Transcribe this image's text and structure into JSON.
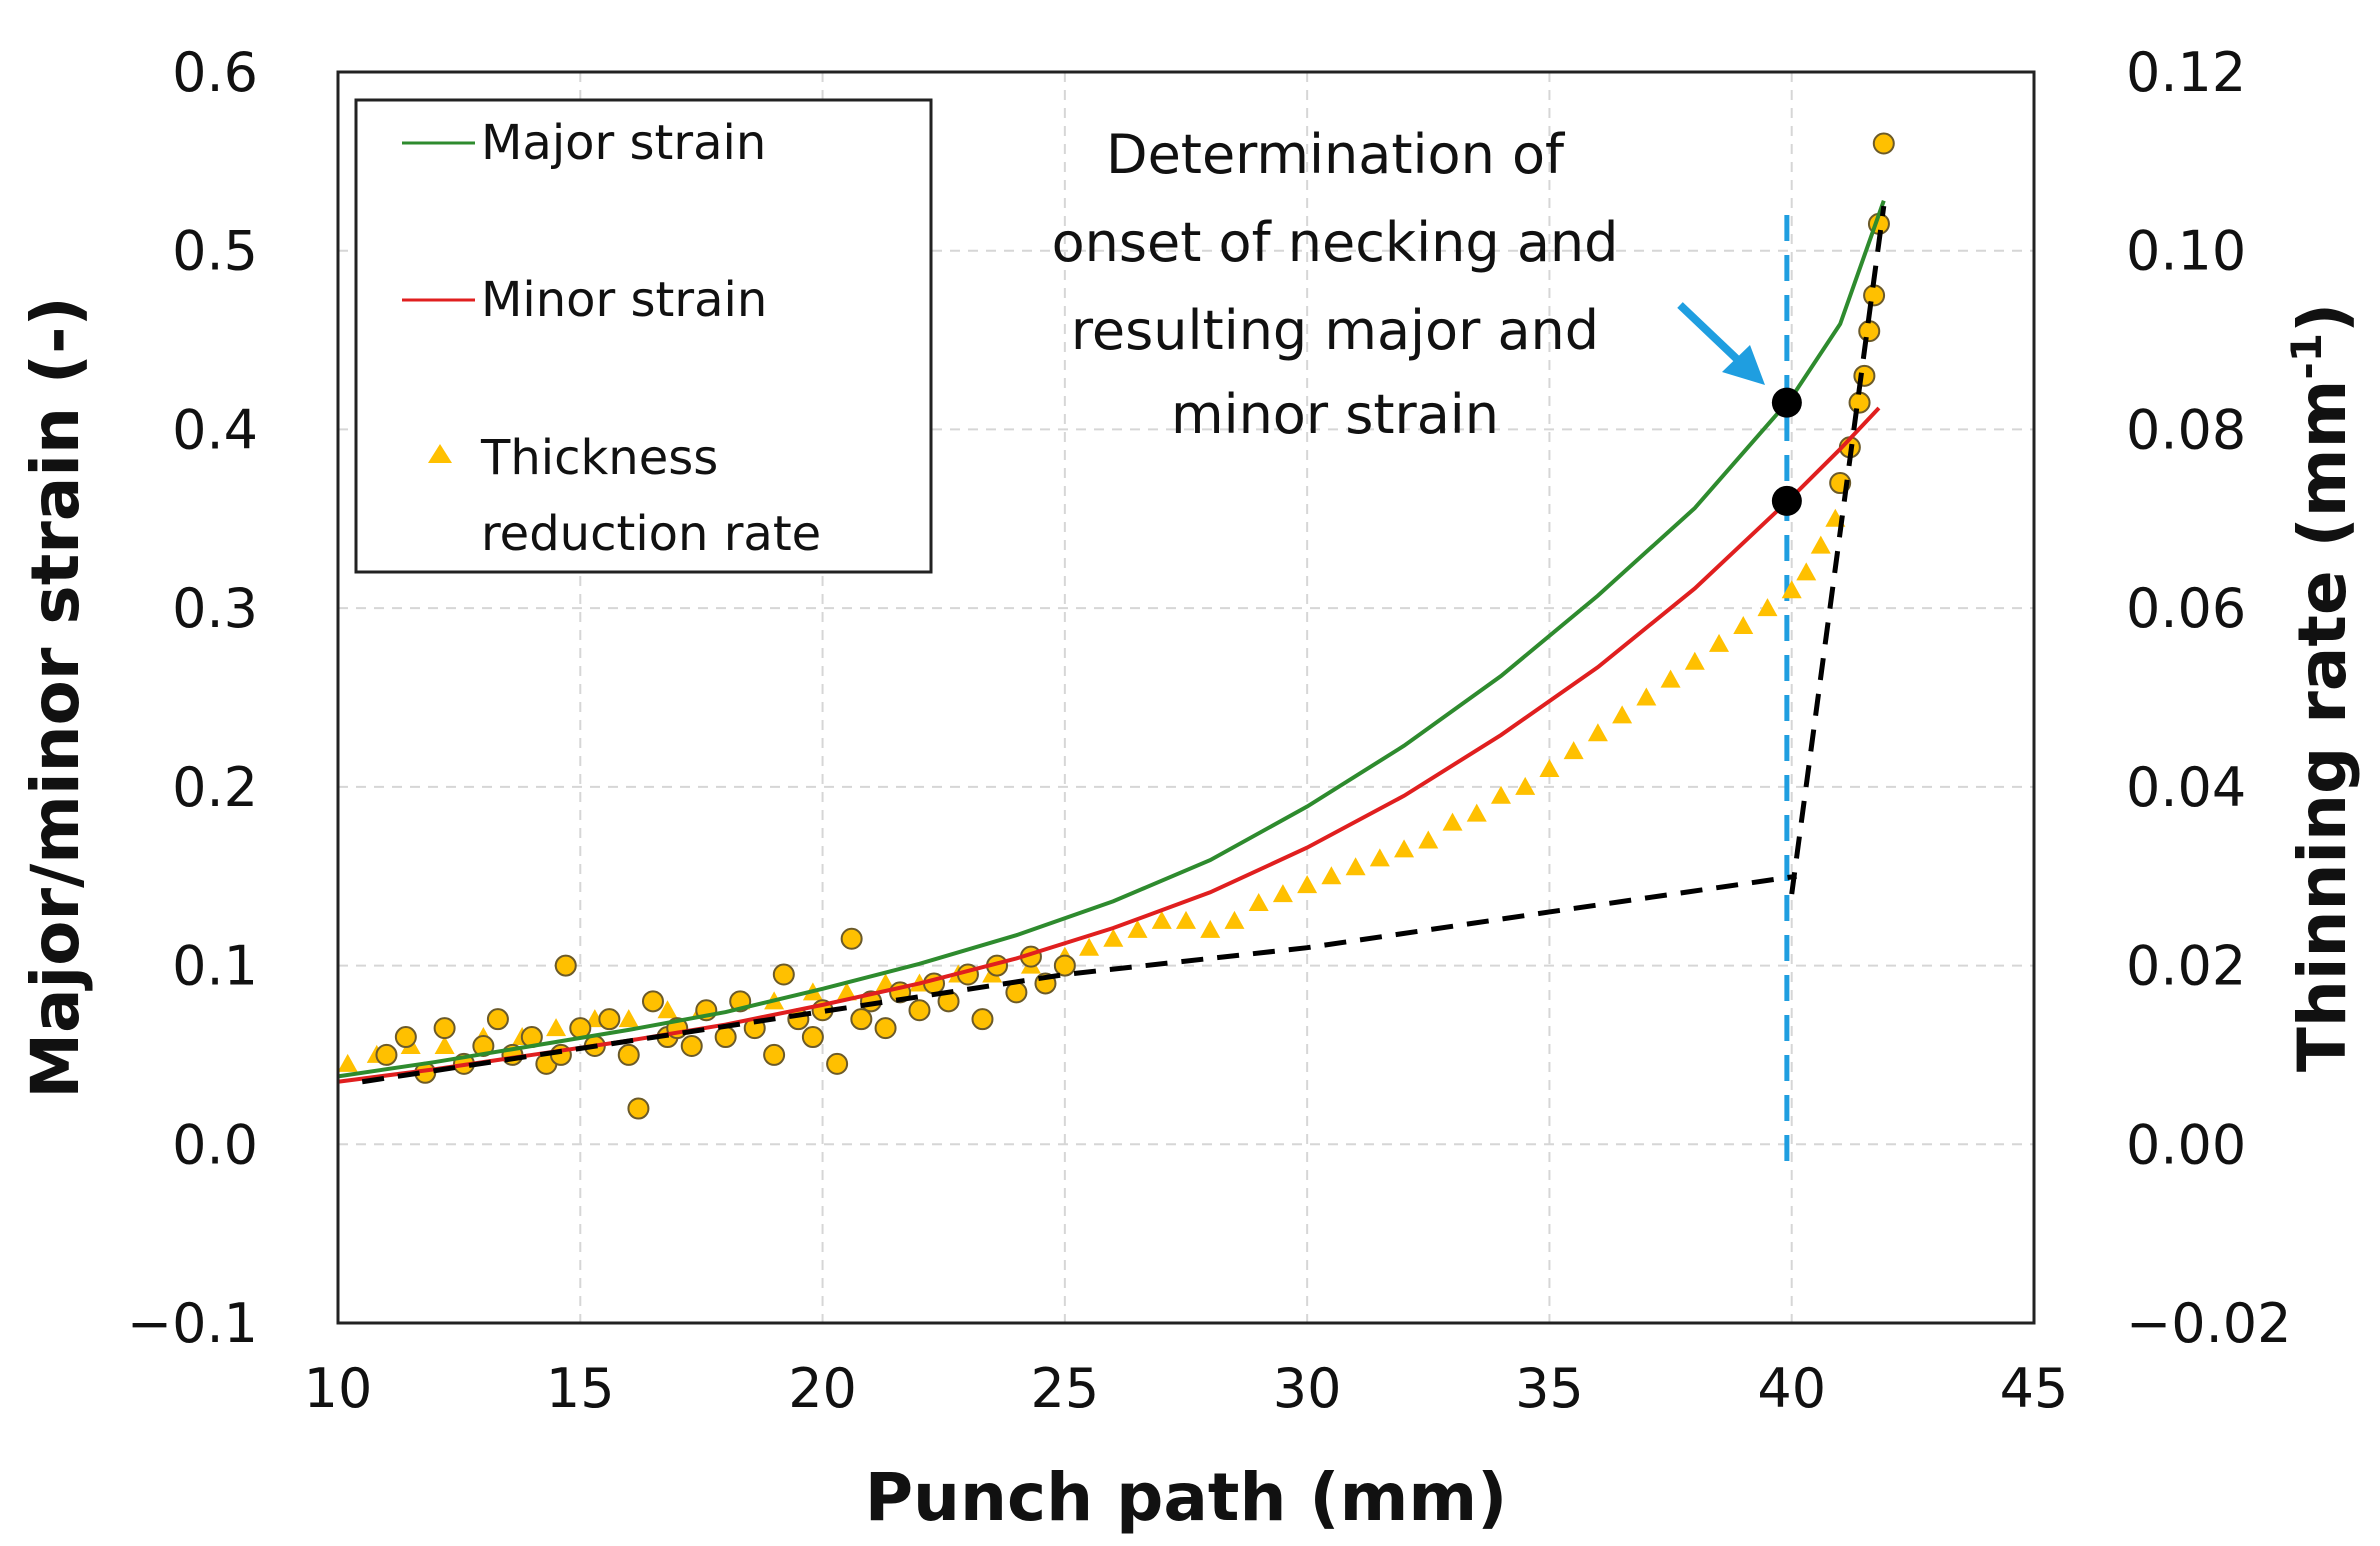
{
  "chart_data": {
    "type": "scatter",
    "title": "",
    "xlabel": "Punch path (mm)",
    "ylabel": "Major/minor strain (-)",
    "y2label": "Thinning rate (mm",
    "y2label_sup": "-1",
    "y2label_close": ")",
    "xlim": [
      10,
      45
    ],
    "ylim": [
      -0.1,
      0.6
    ],
    "y2lim": [
      -0.02,
      0.12
    ],
    "x_ticks": [
      10,
      15,
      20,
      25,
      30,
      35,
      40,
      45
    ],
    "x_tick_labels": [
      "10",
      "15",
      "20",
      "25",
      "30",
      "35",
      "40",
      "45"
    ],
    "y_ticks": [
      -0.1,
      0.0,
      0.1,
      0.2,
      0.3,
      0.4,
      0.5,
      0.6
    ],
    "y_tick_labels": [
      "−0.1",
      "0.0",
      "0.1",
      "0.2",
      "0.3",
      "0.4",
      "0.5",
      "0.6"
    ],
    "y2_ticks": [
      -0.02,
      0.0,
      0.02,
      0.04,
      0.06,
      0.08,
      0.1,
      0.12
    ],
    "y2_tick_labels": [
      "−0.02",
      "0.00",
      "0.02",
      "0.04",
      "0.06",
      "0.08",
      "0.10",
      "0.12"
    ],
    "grid": true,
    "legend_position": "top-left",
    "legend": [
      {
        "label": "Major strain",
        "kind": "line",
        "color": "#2e8b2e"
      },
      {
        "label": "Minor strain",
        "kind": "line",
        "color": "#e01f1f"
      },
      {
        "label": "Thickness",
        "label2": "reduction rate",
        "kind": "triangle",
        "color": "#ffc000"
      }
    ],
    "series": [
      {
        "name": "Major strain",
        "axis": "left",
        "type": "line",
        "color": "#2e8b2e",
        "x": [
          10,
          12,
          14,
          16,
          18,
          20,
          22,
          24,
          26,
          28,
          30,
          32,
          34,
          36,
          38,
          40,
          41,
          41.9
        ],
        "y": [
          0.038,
          0.046,
          0.055,
          0.064,
          0.074,
          0.087,
          0.101,
          0.117,
          0.136,
          0.159,
          0.189,
          0.223,
          0.262,
          0.307,
          0.356,
          0.418,
          0.459,
          0.528
        ]
      },
      {
        "name": "Minor strain",
        "axis": "left",
        "type": "line",
        "color": "#e01f1f",
        "x": [
          10,
          12,
          14,
          16,
          18,
          20,
          22,
          24,
          26,
          28,
          30,
          32,
          34,
          36,
          38,
          40,
          41,
          41.8
        ],
        "y": [
          0.035,
          0.042,
          0.05,
          0.058,
          0.067,
          0.078,
          0.09,
          0.104,
          0.121,
          0.141,
          0.166,
          0.195,
          0.229,
          0.267,
          0.311,
          0.362,
          0.389,
          0.412
        ]
      },
      {
        "name": "Thickness reduction rate",
        "axis": "right",
        "type": "scatter",
        "marker": "triangle",
        "color": "#ffc000",
        "x": [
          10.2,
          10.8,
          11.5,
          12.2,
          13.0,
          13.8,
          14.5,
          15.3,
          16.0,
          16.8,
          17.5,
          18.3,
          19.0,
          19.8,
          20.5,
          21.3,
          22.0,
          22.8,
          23.5,
          24.3,
          25.0,
          25.5,
          26.0,
          26.5,
          27.0,
          27.5,
          28.0,
          28.5,
          29.0,
          29.5,
          30.0,
          30.5,
          31.0,
          31.5,
          32.0,
          32.5,
          33.0,
          33.5,
          34.0,
          34.5,
          35.0,
          35.5,
          36.0,
          36.5,
          37.0,
          37.5,
          38.0,
          38.5,
          39.0,
          39.5,
          40.0,
          40.3,
          40.6,
          40.9
        ],
        "y": [
          0.009,
          0.01,
          0.011,
          0.011,
          0.012,
          0.012,
          0.013,
          0.014,
          0.014,
          0.015,
          0.015,
          0.016,
          0.016,
          0.017,
          0.017,
          0.018,
          0.018,
          0.019,
          0.019,
          0.02,
          0.021,
          0.022,
          0.023,
          0.024,
          0.025,
          0.025,
          0.024,
          0.025,
          0.027,
          0.028,
          0.029,
          0.03,
          0.031,
          0.032,
          0.033,
          0.034,
          0.036,
          0.037,
          0.039,
          0.04,
          0.042,
          0.044,
          0.046,
          0.048,
          0.05,
          0.052,
          0.054,
          0.056,
          0.058,
          0.06,
          0.062,
          0.064,
          0.067,
          0.07
        ]
      },
      {
        "name": "Thinning rate points",
        "axis": "right",
        "type": "scatter",
        "marker": "circle",
        "color": "#ffc000",
        "x": [
          11.0,
          11.4,
          11.8,
          12.2,
          12.6,
          13.0,
          13.3,
          13.6,
          14.0,
          14.3,
          14.6,
          14.7,
          15.0,
          15.3,
          15.6,
          16.0,
          16.2,
          16.5,
          16.8,
          17.0,
          17.3,
          17.6,
          18.0,
          18.3,
          18.6,
          19.0,
          19.2,
          19.5,
          19.8,
          20.0,
          20.3,
          20.6,
          20.8,
          21.0,
          21.3,
          21.6,
          22.0,
          22.3,
          22.6,
          23.0,
          23.3,
          23.6,
          24.0,
          24.3,
          24.6,
          25.0,
          41.0,
          41.2,
          41.4,
          41.5,
          41.6,
          41.7,
          41.8,
          41.9
        ],
        "y": [
          0.01,
          0.012,
          0.008,
          0.013,
          0.009,
          0.011,
          0.014,
          0.01,
          0.012,
          0.009,
          0.01,
          0.02,
          0.013,
          0.011,
          0.014,
          0.01,
          0.004,
          0.016,
          0.012,
          0.013,
          0.011,
          0.015,
          0.012,
          0.016,
          0.013,
          0.01,
          0.019,
          0.014,
          0.012,
          0.015,
          0.009,
          0.023,
          0.014,
          0.016,
          0.013,
          0.017,
          0.015,
          0.018,
          0.016,
          0.019,
          0.014,
          0.02,
          0.017,
          0.021,
          0.018,
          0.02,
          0.074,
          0.078,
          0.083,
          0.086,
          0.091,
          0.095,
          0.103,
          0.112
        ]
      }
    ],
    "trend_lines": [
      {
        "style": "dashed",
        "color": "#000000",
        "axis": "right",
        "x": [
          10.5,
          25,
          30,
          35,
          40.1
        ],
        "y": [
          0.007,
          0.019,
          0.022,
          0.026,
          0.03
        ]
      },
      {
        "style": "dashed",
        "color": "#000000",
        "axis": "right",
        "x": [
          40.0,
          41.9
        ],
        "y": [
          0.028,
          0.105
        ]
      }
    ],
    "necking_line": {
      "x": 39.9,
      "color": "#1f9ee0",
      "axis": "left",
      "y_from": -0.015,
      "y_to": 0.52
    },
    "necking_points": [
      {
        "label": "major",
        "x": 39.9,
        "y": 0.415
      },
      {
        "label": "minor",
        "x": 39.9,
        "y": 0.36
      }
    ],
    "annotation": {
      "lines": [
        "Determination of",
        "onset of necking and",
        "resulting major and",
        "minor strain"
      ],
      "arrow_color": "#1f9ee0"
    }
  }
}
